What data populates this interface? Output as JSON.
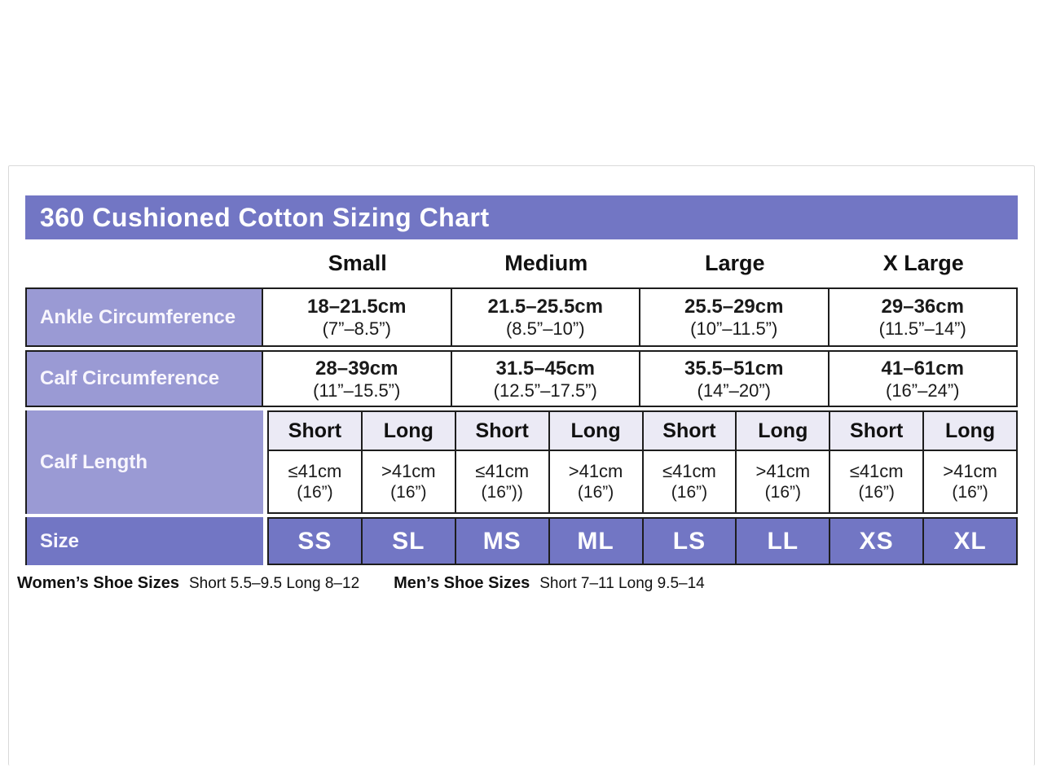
{
  "title": "360 Cushioned Cotton Sizing Chart",
  "colors": {
    "header_purple": "#7276c4",
    "label_purple": "#9a9ad4",
    "subheader_lavender": "#ebeaf5",
    "border_black": "#1d1d1d",
    "text_white": "#ffffff"
  },
  "columns": [
    "Small",
    "Medium",
    "Large",
    "X Large"
  ],
  "rows": {
    "ankle": {
      "label": "Ankle Circumference",
      "values": [
        {
          "cm": "18–21.5cm",
          "in": "(7”–8.5”)"
        },
        {
          "cm": "21.5–25.5cm",
          "in": "(8.5”–10”)"
        },
        {
          "cm": "25.5–29cm",
          "in": "(10”–11.5”)"
        },
        {
          "cm": "29–36cm",
          "in": "(11.5”–14”)"
        }
      ]
    },
    "calf_circumference": {
      "label": "Calf Circumference",
      "values": [
        {
          "cm": "28–39cm",
          "in": "(11”–15.5”)"
        },
        {
          "cm": "31.5–45cm",
          "in": "(12.5”–17.5”)"
        },
        {
          "cm": "35.5–51cm",
          "in": "(14”–20”)"
        },
        {
          "cm": "41–61cm",
          "in": "(16”–24”)"
        }
      ]
    },
    "calf_length": {
      "label": "Calf Length",
      "subheaders": [
        "Short",
        "Long",
        "Short",
        "Long",
        "Short",
        "Long",
        "Short",
        "Long"
      ],
      "values": [
        {
          "cm": "≤41cm",
          "in": "(16”)"
        },
        {
          "cm": ">41cm",
          "in": "(16”)"
        },
        {
          "cm": "≤41cm",
          "in": "(16”))"
        },
        {
          "cm": ">41cm",
          "in": "(16”)"
        },
        {
          "cm": "≤41cm",
          "in": "(16”)"
        },
        {
          "cm": ">41cm",
          "in": "(16”)"
        },
        {
          "cm": "≤41cm",
          "in": "(16”)"
        },
        {
          "cm": ">41cm",
          "in": "(16”)"
        }
      ]
    },
    "size": {
      "label": "Size",
      "values": [
        "SS",
        "SL",
        "MS",
        "ML",
        "LS",
        "LL",
        "XS",
        "XL"
      ]
    }
  },
  "footer": {
    "womens_label": "Women’s Shoe Sizes",
    "womens_values": "Short 5.5–9.5 Long  8–12",
    "mens_label": "Men’s Shoe Sizes",
    "mens_values": "Short 7–11 Long  9.5–14"
  },
  "chart_data": {
    "type": "table",
    "title": "360 Cushioned Cotton Sizing Chart",
    "columns": [
      "Small Short",
      "Small Long",
      "Medium Short",
      "Medium Long",
      "Large Short",
      "Large Long",
      "X Large Short",
      "X Large Long"
    ],
    "rows": [
      {
        "label": "Ankle Circumference",
        "values": [
          "18–21.5cm (7”–8.5”)",
          "18–21.5cm (7”–8.5”)",
          "21.5–25.5cm (8.5”–10”)",
          "21.5–25.5cm (8.5”–10”)",
          "25.5–29cm (10”–11.5”)",
          "25.5–29cm (10”–11.5”)",
          "29–36cm (11.5”–14”)",
          "29–36cm (11.5”–14”)"
        ]
      },
      {
        "label": "Calf Circumference",
        "values": [
          "28–39cm (11”–15.5”)",
          "28–39cm (11”–15.5”)",
          "31.5–45cm (12.5”–17.5”)",
          "31.5–45cm (12.5”–17.5”)",
          "35.5–51cm (14”–20”)",
          "35.5–51cm (14”–20”)",
          "41–61cm (16”–24”)",
          "41–61cm (16”–24”)"
        ]
      },
      {
        "label": "Calf Length",
        "values": [
          "≤41cm (16”)",
          ">41cm (16”)",
          "≤41cm (16”))",
          ">41cm (16”)",
          "≤41cm (16”)",
          ">41cm (16”)",
          "≤41cm (16”)",
          ">41cm (16”)"
        ]
      },
      {
        "label": "Size",
        "values": [
          "SS",
          "SL",
          "MS",
          "ML",
          "LS",
          "LL",
          "XS",
          "XL"
        ]
      }
    ],
    "notes": "Women’s Shoe Sizes: Short 5.5–9.5, Long 8–12. Men’s Shoe Sizes: Short 7–11, Long 9.5–14."
  }
}
